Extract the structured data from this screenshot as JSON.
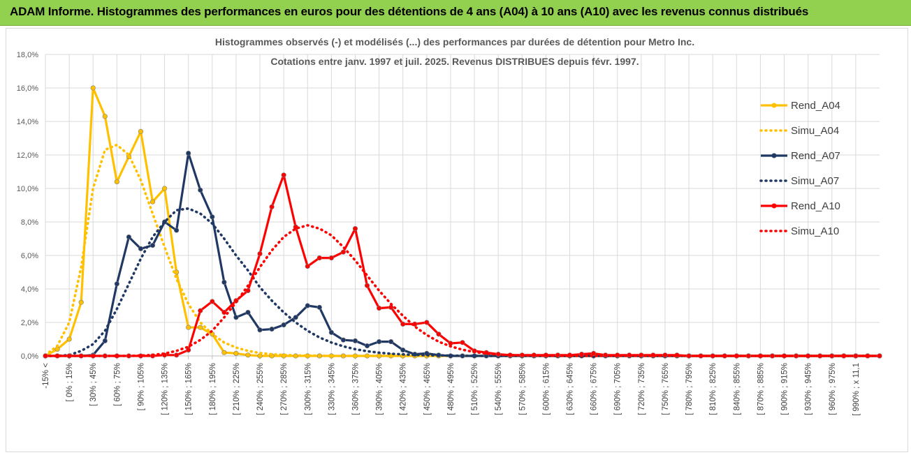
{
  "header": {
    "title": "ADAM Informe. Histogrammes des performances en euros pour des détentions de 4 ans (A04) à 10 ans (A10) avec les revenus connus distribués"
  },
  "colors": {
    "banner": "#92d050",
    "Rend_A04": "#ffc000",
    "Simu_A04": "#ffc000",
    "Rend_A07": "#1f3864",
    "Simu_A07": "#1f3864",
    "Rend_A10": "#ff0000",
    "Simu_A10": "#ff0000",
    "grid": "#d9d9d9"
  },
  "chart_data": {
    "type": "line",
    "title_lines": [
      "Histogrammes observés (-) et modélisés (...) des performances par durées de détention pour Metro Inc.",
      "Cotations entre janv. 1997 et juil. 2025. Revenus DISTRIBUES depuis févr. 1997."
    ],
    "y_tick_labels": [
      "0,0%",
      "2,0%",
      "4,0%",
      "6,0%",
      "8,0%",
      "10,0%",
      "12,0%",
      "14,0%",
      "16,0%",
      "18,0%"
    ],
    "ylim": [
      0,
      18
    ],
    "y_unit": "%",
    "grid": true,
    "legend_position": "right",
    "x_tick_labels": [
      "-15% <",
      "[ 0% ; 15%",
      "[ 30% ; 45%",
      "[ 60% ; 75%",
      "[ 90% ; 105%",
      "[ 120% ; 135%",
      "[ 150% ; 165%",
      "[ 180% ; 195%",
      "[ 210% ; 225%",
      "[ 240% ; 255%",
      "[ 270% ; 285%",
      "[ 300% ; 315%",
      "[ 330% ; 345%",
      "[ 360% ; 375%",
      "[ 390% ; 405%",
      "[ 420% ; 435%",
      "[ 450% ; 465%",
      "[ 480% ; 495%",
      "[ 510% ; 525%",
      "[ 540% ; 555%",
      "[ 570% ; 585%",
      "[ 600% ; 615%",
      "[ 630% ; 645%",
      "[ 660% ; 675%",
      "[ 690% ; 705%",
      "[ 720% ; 735%",
      "[ 750% ; 765%",
      "[ 780% ; 795%",
      "[ 810% ; 825%",
      "[ 840% ; 855%",
      "[ 870% ; 885%",
      "[ 900% ; 915%",
      "[ 930% ; 945%",
      "[ 960% ; 975%",
      "[ 990% ; x 11,1"
    ],
    "point_count": 71,
    "series": [
      {
        "name": "Rend_A04",
        "style": "solid",
        "marker": true,
        "values": [
          0,
          0.4,
          1.0,
          3.2,
          16.0,
          14.3,
          10.4,
          11.9,
          13.4,
          9.2,
          10.0,
          5.0,
          1.7,
          1.7,
          1.3,
          0.2,
          0.15,
          0.05,
          0,
          0,
          0,
          0,
          0,
          0,
          0,
          0,
          0,
          0,
          0,
          0,
          0,
          0,
          0,
          0,
          0,
          0,
          0,
          0,
          0,
          0,
          0,
          0,
          0,
          0,
          0,
          0,
          0,
          0,
          0,
          0,
          0,
          0,
          0,
          0,
          0,
          0,
          0,
          0,
          0,
          0,
          0,
          0,
          0,
          0,
          0,
          0,
          0,
          0,
          0,
          0,
          0
        ]
      },
      {
        "name": "Simu_A04",
        "style": "dotted",
        "marker": false,
        "values": [
          0.05,
          0.6,
          2.0,
          5.3,
          10.0,
          12.3,
          12.6,
          12.0,
          10.5,
          8.5,
          6.5,
          4.6,
          3.1,
          2.0,
          1.3,
          0.8,
          0.5,
          0.3,
          0.17,
          0.1,
          0.06,
          0.03,
          0.02,
          0.01,
          0,
          0,
          0,
          0,
          0,
          0,
          0,
          0,
          0,
          0,
          0,
          0,
          0,
          0,
          0,
          0,
          0,
          0,
          0,
          0,
          0,
          0,
          0,
          0,
          0,
          0,
          0,
          0,
          0,
          0,
          0,
          0,
          0,
          0,
          0,
          0,
          0,
          0,
          0,
          0,
          0,
          0,
          0,
          0,
          0,
          0,
          0
        ]
      },
      {
        "name": "Rend_A07",
        "style": "solid",
        "marker": true,
        "values": [
          0,
          0,
          0,
          0,
          0.05,
          0.9,
          4.3,
          7.1,
          6.4,
          6.6,
          8.0,
          7.5,
          12.1,
          9.9,
          8.3,
          4.4,
          2.3,
          2.6,
          1.55,
          1.6,
          1.85,
          2.3,
          3.0,
          2.9,
          1.4,
          0.95,
          0.9,
          0.6,
          0.85,
          0.85,
          0.35,
          0.1,
          0.15,
          0.05,
          0,
          0,
          0,
          0,
          0,
          0,
          0,
          0,
          0,
          0,
          0,
          0,
          0,
          0,
          0,
          0,
          0,
          0,
          0,
          0,
          0,
          0,
          0,
          0,
          0,
          0,
          0,
          0,
          0,
          0,
          0,
          0,
          0,
          0,
          0,
          0,
          0
        ]
      },
      {
        "name": "Simu_A07",
        "style": "dotted",
        "marker": false,
        "values": [
          0,
          0,
          0.05,
          0.3,
          0.7,
          1.5,
          2.8,
          4.3,
          5.8,
          7.1,
          8.0,
          8.7,
          8.8,
          8.5,
          7.9,
          7.0,
          6.0,
          5.1,
          4.1,
          3.3,
          2.6,
          2.0,
          1.5,
          1.1,
          0.8,
          0.57,
          0.4,
          0.28,
          0.19,
          0.13,
          0.09,
          0.06,
          0.04,
          0.03,
          0.02,
          0.01,
          0,
          0,
          0,
          0,
          0,
          0,
          0,
          0,
          0,
          0,
          0,
          0,
          0,
          0,
          0,
          0,
          0,
          0,
          0,
          0,
          0,
          0,
          0,
          0,
          0,
          0,
          0,
          0,
          0,
          0,
          0,
          0,
          0,
          0,
          0
        ]
      },
      {
        "name": "Rend_A10",
        "style": "solid",
        "marker": true,
        "values": [
          0,
          0,
          0,
          0,
          0,
          0,
          0,
          0,
          0,
          0,
          0.05,
          0.05,
          0.35,
          2.7,
          3.25,
          2.6,
          3.3,
          3.9,
          6.1,
          8.9,
          10.8,
          7.7,
          5.35,
          5.85,
          5.85,
          6.2,
          7.6,
          4.2,
          2.85,
          2.9,
          1.9,
          1.9,
          2.0,
          1.3,
          0.75,
          0.8,
          0.3,
          0.2,
          0.1,
          0.05,
          0.05,
          0.05,
          0.05,
          0.05,
          0.05,
          0.1,
          0.15,
          0.05,
          0.05,
          0.05,
          0.05,
          0.05,
          0.05,
          0.05,
          0,
          0,
          0,
          0,
          0,
          0,
          0,
          0,
          0,
          0,
          0,
          0,
          0,
          0,
          0,
          0,
          0
        ]
      },
      {
        "name": "Simu_A10",
        "style": "dotted",
        "marker": false,
        "values": [
          0,
          0,
          0,
          0,
          0,
          0,
          0,
          0,
          0.02,
          0.06,
          0.14,
          0.3,
          0.55,
          0.95,
          1.5,
          2.3,
          3.2,
          4.2,
          5.3,
          6.3,
          7.1,
          7.6,
          7.8,
          7.6,
          7.2,
          6.5,
          5.7,
          4.8,
          3.9,
          3.1,
          2.4,
          1.75,
          1.25,
          0.85,
          0.57,
          0.37,
          0.23,
          0.14,
          0.08,
          0.05,
          0.03,
          0.02,
          0.01,
          0,
          0,
          0,
          0,
          0,
          0,
          0,
          0,
          0,
          0,
          0,
          0,
          0,
          0,
          0,
          0,
          0,
          0,
          0,
          0,
          0,
          0,
          0,
          0,
          0,
          0,
          0,
          0
        ]
      }
    ]
  }
}
